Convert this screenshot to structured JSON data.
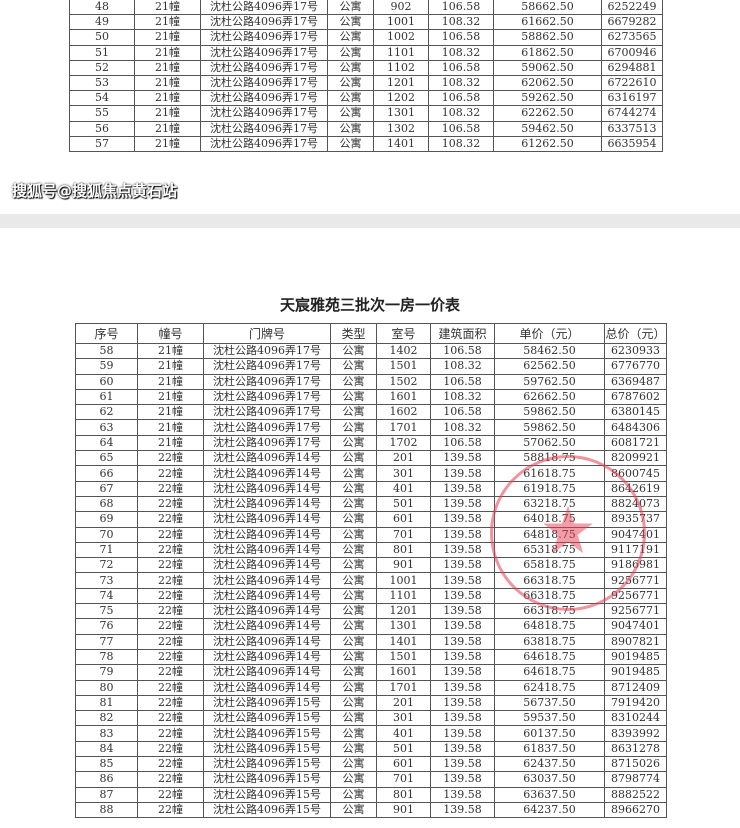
{
  "doc": {
    "title": "天宸雅苑三批次一房一价表",
    "headers": [
      "序号",
      "幢号",
      "门牌号",
      "类型",
      "室号",
      "建筑面积",
      "单价（元）",
      "总价（元）"
    ],
    "page1_rows": [
      [
        "48",
        "21幢",
        "沈杜公路4096弄17号",
        "公寓",
        "902",
        "106.58",
        "58662.50",
        "6252249"
      ],
      [
        "49",
        "21幢",
        "沈杜公路4096弄17号",
        "公寓",
        "1001",
        "108.32",
        "61662.50",
        "6679282"
      ],
      [
        "50",
        "21幢",
        "沈杜公路4096弄17号",
        "公寓",
        "1002",
        "106.58",
        "58862.50",
        "6273565"
      ],
      [
        "51",
        "21幢",
        "沈杜公路4096弄17号",
        "公寓",
        "1101",
        "108.32",
        "61862.50",
        "6700946"
      ],
      [
        "52",
        "21幢",
        "沈杜公路4096弄17号",
        "公寓",
        "1102",
        "106.58",
        "59062.50",
        "6294881"
      ],
      [
        "53",
        "21幢",
        "沈杜公路4096弄17号",
        "公寓",
        "1201",
        "108.32",
        "62062.50",
        "6722610"
      ],
      [
        "54",
        "21幢",
        "沈杜公路4096弄17号",
        "公寓",
        "1202",
        "106.58",
        "59262.50",
        "6316197"
      ],
      [
        "55",
        "21幢",
        "沈杜公路4096弄17号",
        "公寓",
        "1301",
        "108.32",
        "62262.50",
        "6744274"
      ],
      [
        "56",
        "21幢",
        "沈杜公路4096弄17号",
        "公寓",
        "1302",
        "106.58",
        "59462.50",
        "6337513"
      ],
      [
        "57",
        "21幢",
        "沈杜公路4096弄17号",
        "公寓",
        "1401",
        "108.32",
        "61262.50",
        "6635954"
      ]
    ],
    "page2_rows": [
      [
        "58",
        "21幢",
        "沈杜公路4096弄17号",
        "公寓",
        "1402",
        "106.58",
        "58462.50",
        "6230933"
      ],
      [
        "59",
        "21幢",
        "沈杜公路4096弄17号",
        "公寓",
        "1501",
        "108.32",
        "62562.50",
        "6776770"
      ],
      [
        "60",
        "21幢",
        "沈杜公路4096弄17号",
        "公寓",
        "1502",
        "106.58",
        "59762.50",
        "6369487"
      ],
      [
        "61",
        "21幢",
        "沈杜公路4096弄17号",
        "公寓",
        "1601",
        "108.32",
        "62662.50",
        "6787602"
      ],
      [
        "62",
        "21幢",
        "沈杜公路4096弄17号",
        "公寓",
        "1602",
        "106.58",
        "59862.50",
        "6380145"
      ],
      [
        "63",
        "21幢",
        "沈杜公路4096弄17号",
        "公寓",
        "1701",
        "108.32",
        "59862.50",
        "6484306"
      ],
      [
        "64",
        "21幢",
        "沈杜公路4096弄17号",
        "公寓",
        "1702",
        "106.58",
        "57062.50",
        "6081721"
      ],
      [
        "65",
        "22幢",
        "沈杜公路4096弄14号",
        "公寓",
        "201",
        "139.58",
        "58818.75",
        "8209921"
      ],
      [
        "66",
        "22幢",
        "沈杜公路4096弄14号",
        "公寓",
        "301",
        "139.58",
        "61618.75",
        "8600745"
      ],
      [
        "67",
        "22幢",
        "沈杜公路4096弄14号",
        "公寓",
        "401",
        "139.58",
        "61918.75",
        "8642619"
      ],
      [
        "68",
        "22幢",
        "沈杜公路4096弄14号",
        "公寓",
        "501",
        "139.58",
        "63218.75",
        "8824073"
      ],
      [
        "69",
        "22幢",
        "沈杜公路4096弄14号",
        "公寓",
        "601",
        "139.58",
        "64018.75",
        "8935737"
      ],
      [
        "70",
        "22幢",
        "沈杜公路4096弄14号",
        "公寓",
        "701",
        "139.58",
        "64818.75",
        "9047401"
      ],
      [
        "71",
        "22幢",
        "沈杜公路4096弄14号",
        "公寓",
        "801",
        "139.58",
        "65318.75",
        "9117191"
      ],
      [
        "72",
        "22幢",
        "沈杜公路4096弄14号",
        "公寓",
        "901",
        "139.58",
        "65818.75",
        "9186981"
      ],
      [
        "73",
        "22幢",
        "沈杜公路4096弄14号",
        "公寓",
        "1001",
        "139.58",
        "66318.75",
        "9256771"
      ],
      [
        "74",
        "22幢",
        "沈杜公路4096弄14号",
        "公寓",
        "1101",
        "139.58",
        "66318.75",
        "9256771"
      ],
      [
        "75",
        "22幢",
        "沈杜公路4096弄14号",
        "公寓",
        "1201",
        "139.58",
        "66318.75",
        "9256771"
      ],
      [
        "76",
        "22幢",
        "沈杜公路4096弄14号",
        "公寓",
        "1301",
        "139.58",
        "64818.75",
        "9047401"
      ],
      [
        "77",
        "22幢",
        "沈杜公路4096弄14号",
        "公寓",
        "1401",
        "139.58",
        "63818.75",
        "8907821"
      ],
      [
        "78",
        "22幢",
        "沈杜公路4096弄14号",
        "公寓",
        "1501",
        "139.58",
        "64618.75",
        "9019485"
      ],
      [
        "79",
        "22幢",
        "沈杜公路4096弄14号",
        "公寓",
        "1601",
        "139.58",
        "64618.75",
        "9019485"
      ],
      [
        "80",
        "22幢",
        "沈杜公路4096弄14号",
        "公寓",
        "1701",
        "139.58",
        "62418.75",
        "8712409"
      ],
      [
        "81",
        "22幢",
        "沈杜公路4096弄15号",
        "公寓",
        "201",
        "139.58",
        "56737.50",
        "7919420"
      ],
      [
        "82",
        "22幢",
        "沈杜公路4096弄15号",
        "公寓",
        "301",
        "139.58",
        "59537.50",
        "8310244"
      ],
      [
        "83",
        "22幢",
        "沈杜公路4096弄15号",
        "公寓",
        "401",
        "139.58",
        "60137.50",
        "8393992"
      ],
      [
        "84",
        "22幢",
        "沈杜公路4096弄15号",
        "公寓",
        "501",
        "139.58",
        "61837.50",
        "8631278"
      ],
      [
        "85",
        "22幢",
        "沈杜公路4096弄15号",
        "公寓",
        "601",
        "139.58",
        "62437.50",
        "8715026"
      ],
      [
        "86",
        "22幢",
        "沈杜公路4096弄15号",
        "公寓",
        "701",
        "139.58",
        "63037.50",
        "8798774"
      ],
      [
        "87",
        "22幢",
        "沈杜公路4096弄15号",
        "公寓",
        "801",
        "139.58",
        "63637.50",
        "8882522"
      ],
      [
        "88",
        "22幢",
        "沈杜公路4096弄15号",
        "公寓",
        "901",
        "139.58",
        "64237.50",
        "8966270"
      ]
    ]
  },
  "watermark": "搜狐号@搜狐焦点黄石站",
  "colors": {
    "stamp": "#e63c50",
    "border": "#555555"
  }
}
